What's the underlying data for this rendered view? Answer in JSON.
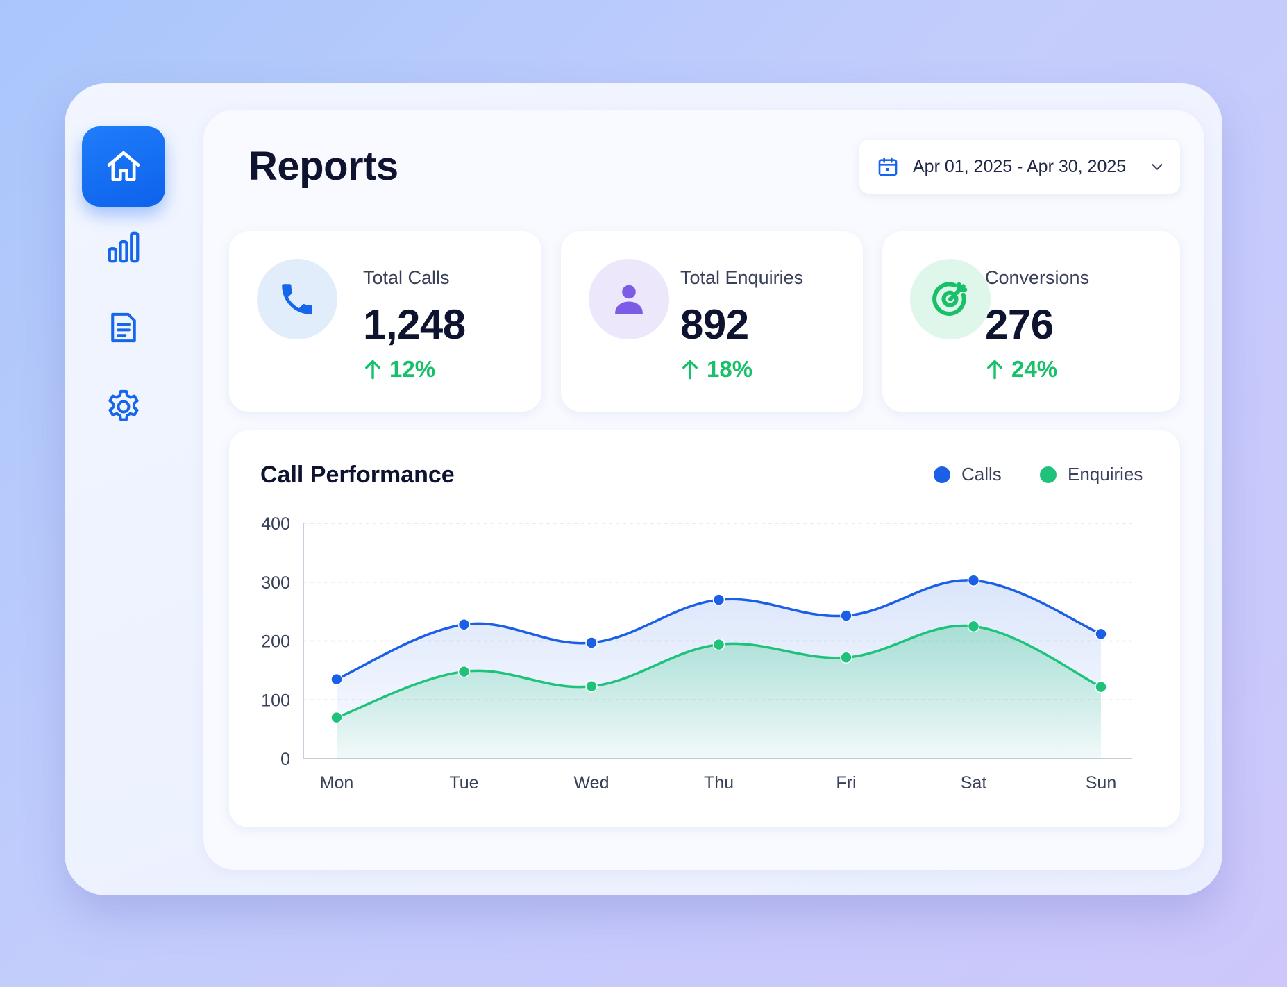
{
  "colors": {
    "accent": "#0d62ec",
    "calls": "#1b5fe6",
    "enquiries": "#1fc27a",
    "trend_up": "#18c06a",
    "enquiries_icon": "#7c5ce6"
  },
  "sidebar": {
    "items": [
      {
        "icon": "home-icon",
        "active": true
      },
      {
        "icon": "bar-chart-icon",
        "active": false
      },
      {
        "icon": "document-icon",
        "active": false
      },
      {
        "icon": "gear-icon",
        "active": false
      }
    ]
  },
  "header": {
    "title": "Reports",
    "date_range": "Apr 01, 2025 - Apr 30, 2025"
  },
  "stats": [
    {
      "label": "Total Calls",
      "value": "1,248",
      "change": "12%",
      "icon": "phone-icon"
    },
    {
      "label": "Total Enquiries",
      "value": "892",
      "change": "18%",
      "icon": "user-icon"
    },
    {
      "label": "Conversions",
      "value": "276",
      "change": "24%",
      "icon": "target-icon"
    }
  ],
  "chart": {
    "title": "Call Performance",
    "legend": [
      "Calls",
      "Enquiries"
    ]
  },
  "chart_data": {
    "type": "area",
    "title": "Call Performance",
    "categories": [
      "Mon",
      "Tue",
      "Wed",
      "Thu",
      "Fri",
      "Sat",
      "Sun"
    ],
    "series": [
      {
        "name": "Calls",
        "values": [
          135,
          228,
          197,
          270,
          243,
          303,
          212
        ]
      },
      {
        "name": "Enquiries",
        "values": [
          70,
          148,
          123,
          194,
          172,
          225,
          122
        ]
      }
    ],
    "ylim": [
      0,
      400
    ],
    "yticks": [
      0,
      100,
      200,
      300,
      400
    ],
    "grid": true,
    "legend_position": "top-right"
  }
}
